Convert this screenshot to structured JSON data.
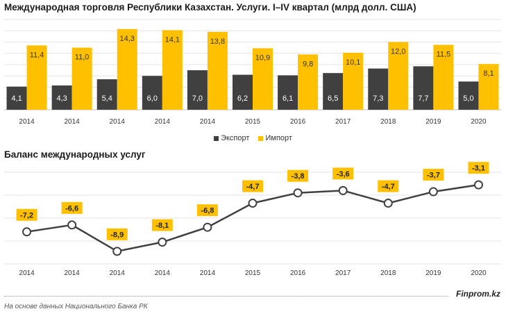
{
  "title_trade": "Международная торговля Республики Казахстан. Услуги. I–IV квартал (млрд долл. США)",
  "title_balance": "Баланс международных услуг",
  "source": "На основе данных Национального  Банка РК",
  "brand": "Finprom.kz",
  "colors": {
    "export": "#404040",
    "import": "#FFC000",
    "line": "#404040",
    "label_bg": "#FFC000"
  },
  "chart_data": [
    {
      "type": "bar",
      "title": "Международная торговля Республики Казахстан. Услуги. I–IV квартал (млрд долл. США)",
      "categories": [
        "2014",
        "2014",
        "2014",
        "2014",
        "2014",
        "2015",
        "2016",
        "2017",
        "2018",
        "2019",
        "2020"
      ],
      "series": [
        {
          "name": "Экспорт",
          "values": [
            4.1,
            4.3,
            5.4,
            6.0,
            7.0,
            6.2,
            6.1,
            6.5,
            7.3,
            7.7,
            5.0
          ],
          "labels": [
            "4,1",
            "4,3",
            "5,4",
            "6,0",
            "7,0",
            "6,2",
            "6,1",
            "6,5",
            "7,3",
            "7,7",
            "5,0"
          ]
        },
        {
          "name": "Импорт",
          "values": [
            11.4,
            11.0,
            14.3,
            14.1,
            13.8,
            10.9,
            9.8,
            10.1,
            12.0,
            11.5,
            8.1
          ],
          "labels": [
            "11,4",
            "11,0",
            "14,3",
            "14,1",
            "13,8",
            "10,9",
            "9,8",
            "10,1",
            "12,0",
            "11,5",
            "8,1"
          ]
        }
      ],
      "ylim": [
        0,
        16
      ],
      "grid": true,
      "legend": "bottom"
    },
    {
      "type": "line",
      "title": "Баланс международных услуг",
      "categories": [
        "2014",
        "2014",
        "2014",
        "2014",
        "2014",
        "2015",
        "2016",
        "2017",
        "2018",
        "2019",
        "2020"
      ],
      "values": [
        -7.2,
        -6.6,
        -8.9,
        -8.1,
        -6.8,
        -4.7,
        -3.8,
        -3.6,
        -4.7,
        -3.7,
        -3.1
      ],
      "labels": [
        "-7,2",
        "-6,6",
        "-8,9",
        "-8,1",
        "-6,8",
        "-4,7",
        "-3,8",
        "-3,6",
        "-4,7",
        "-3,7",
        "-3,1"
      ],
      "ylim": [
        -10,
        -2
      ],
      "grid": true
    }
  ]
}
